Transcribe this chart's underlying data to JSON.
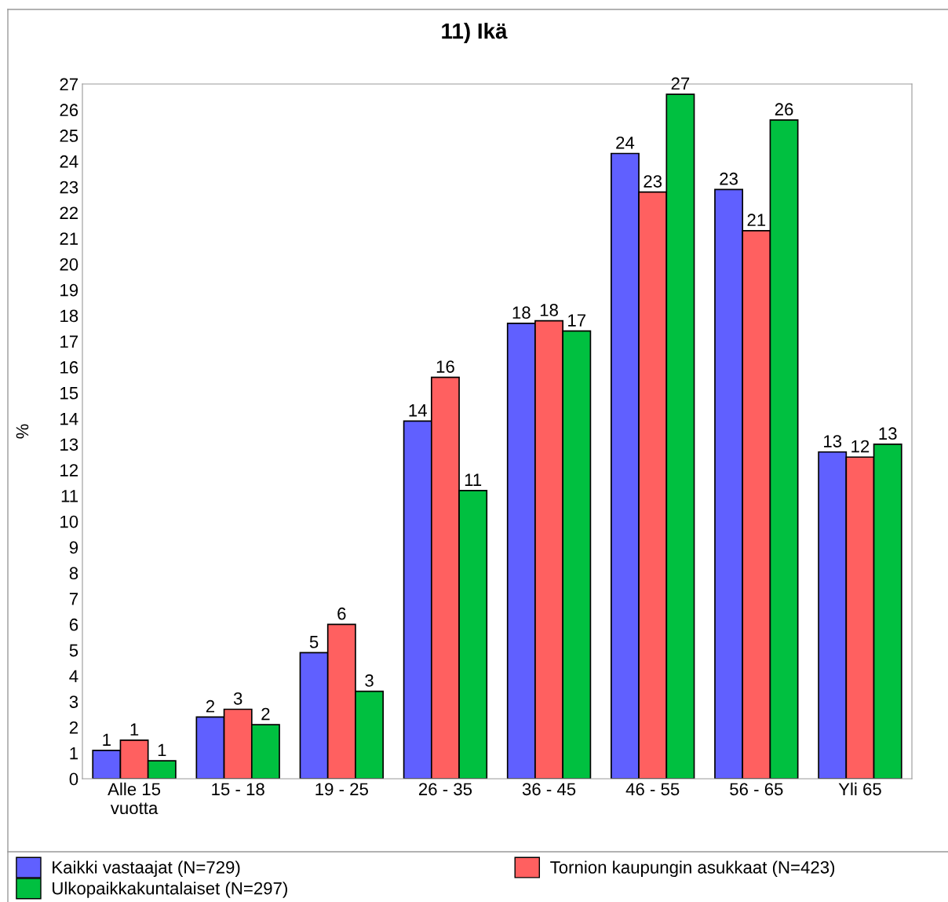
{
  "chart_data": {
    "type": "bar",
    "title": "11) Ikä",
    "ylabel": "%",
    "categories": [
      "Alle 15\nvuotta",
      "15 - 18",
      "19 - 25",
      "26 - 35",
      "36 - 45",
      "46 - 55",
      "56 - 65",
      "Yli 65"
    ],
    "series": [
      {
        "name": "Kaikki vastaajat (N=729)",
        "color": "#6060ff",
        "values": [
          1.1,
          2.4,
          4.9,
          13.9,
          17.7,
          24.3,
          22.9,
          12.7
        ],
        "value_labels": [
          "1",
          "2",
          "5",
          "14",
          "18",
          "24",
          "23",
          "13"
        ]
      },
      {
        "name": "Tornion kaupungin asukkaat (N=423)",
        "color": "#ff6060",
        "values": [
          1.5,
          2.7,
          6.0,
          15.6,
          17.8,
          22.8,
          21.3,
          12.5
        ],
        "value_labels": [
          "1",
          "3",
          "6",
          "16",
          "18",
          "23",
          "21",
          "12"
        ]
      },
      {
        "name": "Ulkopaikkakuntalaiset (N=297)",
        "color": "#00c040",
        "values": [
          0.7,
          2.1,
          3.4,
          11.2,
          17.4,
          26.6,
          25.6,
          13.0
        ],
        "value_labels": [
          "1",
          "2",
          "3",
          "11",
          "17",
          "27",
          "26",
          "13"
        ]
      }
    ],
    "ylim": [
      0,
      27
    ],
    "yticks": [
      0,
      1,
      2,
      3,
      4,
      5,
      6,
      7,
      8,
      9,
      10,
      11,
      12,
      13,
      14,
      15,
      16,
      17,
      18,
      19,
      20,
      21,
      22,
      23,
      24,
      25,
      26,
      27
    ],
    "grid": false,
    "legend": "bottom"
  }
}
